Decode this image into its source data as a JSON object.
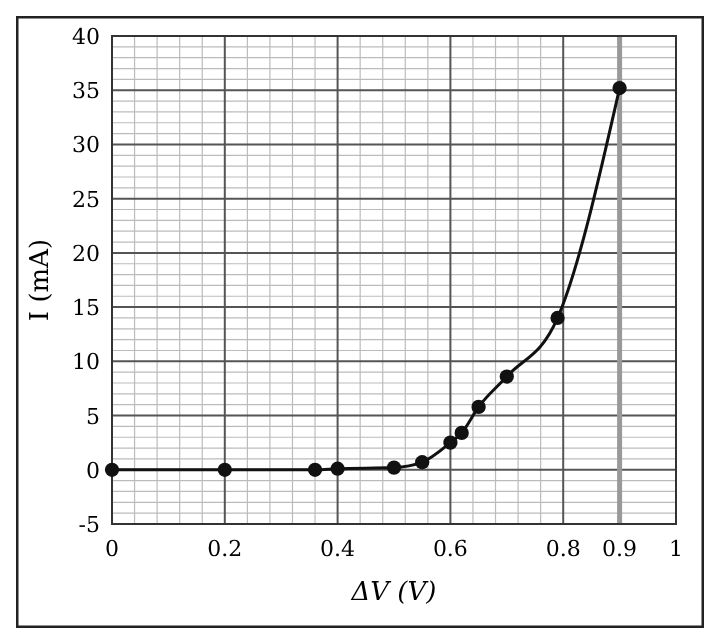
{
  "chart_data": {
    "type": "line",
    "xlabel": "ΔV (V)",
    "ylabel": "I (mA)",
    "xlim": [
      0,
      1
    ],
    "ylim": [
      -5,
      40
    ],
    "xticks": [
      0,
      0.2,
      0.4,
      0.6,
      0.8,
      0.9,
      1
    ],
    "yticks": [
      -5,
      0,
      5,
      10,
      15,
      20,
      25,
      30,
      35,
      40
    ],
    "grid": true,
    "marker": "circle",
    "line_style": "solid",
    "ref_lines": [
      {
        "axis": "x",
        "value": 0.9,
        "color": "#999999"
      }
    ],
    "series": [
      {
        "color": "#111111",
        "x": [
          0,
          0.2,
          0.36,
          0.4,
          0.5,
          0.55,
          0.6,
          0.62,
          0.65,
          0.7,
          0.79,
          0.9
        ],
        "values": [
          0,
          0,
          0,
          0.1,
          0.2,
          0.7,
          2.5,
          3.4,
          5.8,
          8.6,
          14,
          35.2
        ]
      }
    ]
  }
}
